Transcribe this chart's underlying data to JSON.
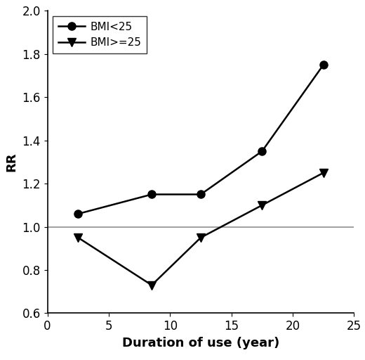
{
  "bmi_low_x": [
    2.5,
    8.5,
    12.5,
    17.5,
    22.5
  ],
  "bmi_low_y": [
    1.06,
    1.15,
    1.15,
    1.35,
    1.75
  ],
  "bmi_high_x": [
    2.5,
    8.5,
    12.5,
    17.5,
    22.5
  ],
  "bmi_high_y": [
    0.95,
    0.73,
    0.95,
    1.1,
    1.25
  ],
  "xlabel": "Duration of use (year)",
  "ylabel": "RR",
  "xlim": [
    0,
    25
  ],
  "ylim": [
    0.6,
    2.0
  ],
  "yticks": [
    0.6,
    0.8,
    1.0,
    1.2,
    1.4,
    1.6,
    1.8,
    2.0
  ],
  "xticks": [
    0,
    5,
    10,
    15,
    20,
    25
  ],
  "legend_labels": [
    "BMI<25",
    "BMI>=25"
  ],
  "ref_line_y": 1.0,
  "line_color": "#000000",
  "ref_line_color": "#909090",
  "marker_circle": "o",
  "marker_triangle": "v",
  "markersize": 8,
  "linewidth": 1.8,
  "tick_fontsize": 12,
  "xlabel_fontsize": 13,
  "ylabel_fontsize": 13
}
